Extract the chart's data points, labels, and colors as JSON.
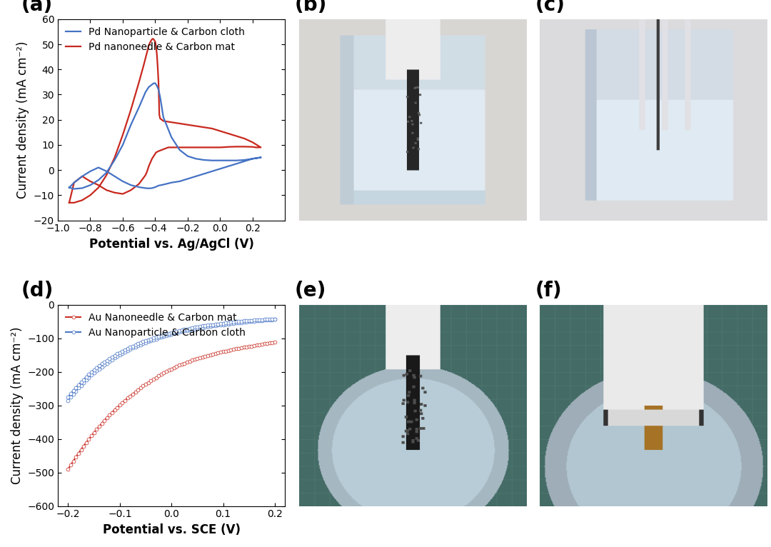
{
  "panel_a": {
    "label": "(a)",
    "xlabel": "Potential vs. Ag/AgCl (V)",
    "ylabel": "Current density (mA cm⁻²)",
    "xlim": [
      -1.0,
      0.4
    ],
    "ylim": [
      -20,
      60
    ],
    "xticks": [
      -1.0,
      -0.8,
      -0.6,
      -0.4,
      -0.2,
      0.0,
      0.2
    ],
    "yticks": [
      -20,
      -10,
      0,
      10,
      20,
      30,
      40,
      50,
      60
    ],
    "legend1": "Pd Nanoparticle & Carbon cloth",
    "legend2": "Pd nanoneedle & Carbon mat",
    "color1": "#4472C4",
    "color2": "#C8281E",
    "blue_cv_x": [
      -0.93,
      -0.9,
      -0.85,
      -0.8,
      -0.75,
      -0.7,
      -0.65,
      -0.6,
      -0.55,
      -0.5,
      -0.48,
      -0.46,
      -0.44,
      -0.42,
      -0.41,
      -0.4,
      -0.39,
      -0.38,
      -0.37,
      -0.36,
      -0.35,
      -0.3,
      -0.25,
      -0.2,
      -0.15,
      -0.1,
      -0.05,
      0.0,
      0.05,
      0.1,
      0.15,
      0.2,
      0.25,
      0.25,
      0.2,
      0.15,
      0.1,
      0.05,
      0.0,
      -0.05,
      -0.1,
      -0.15,
      -0.2,
      -0.25,
      -0.3,
      -0.35,
      -0.38,
      -0.4,
      -0.42,
      -0.44,
      -0.46,
      -0.5,
      -0.55,
      -0.6,
      -0.65,
      -0.7,
      -0.75,
      -0.8,
      -0.85,
      -0.9,
      -0.93
    ],
    "blue_cv_y": [
      -7.0,
      -7.5,
      -7.2,
      -6.0,
      -4.0,
      -1.0,
      4.0,
      10.0,
      18.0,
      25.0,
      28.0,
      31.0,
      33.0,
      34.0,
      34.5,
      34.5,
      33.5,
      32.0,
      29.0,
      25.0,
      21.0,
      13.0,
      8.0,
      5.5,
      4.5,
      4.0,
      3.8,
      3.8,
      3.8,
      3.8,
      4.0,
      4.5,
      5.0,
      5.0,
      4.5,
      3.5,
      2.5,
      1.5,
      0.5,
      -0.5,
      -1.5,
      -2.5,
      -3.5,
      -4.5,
      -5.0,
      -5.8,
      -6.2,
      -6.8,
      -7.2,
      -7.3,
      -7.2,
      -6.8,
      -6.0,
      -4.5,
      -2.5,
      -0.5,
      1.0,
      -0.5,
      -2.5,
      -5.0,
      -7.0
    ],
    "red_cv_x": [
      -0.93,
      -0.9,
      -0.85,
      -0.8,
      -0.75,
      -0.7,
      -0.65,
      -0.6,
      -0.55,
      -0.5,
      -0.47,
      -0.45,
      -0.44,
      -0.43,
      -0.42,
      -0.415,
      -0.41,
      -0.405,
      -0.4,
      -0.395,
      -0.39,
      -0.385,
      -0.38,
      -0.375,
      -0.37,
      -0.36,
      -0.35,
      -0.3,
      -0.25,
      -0.2,
      -0.15,
      -0.1,
      -0.05,
      0.0,
      0.05,
      0.1,
      0.15,
      0.2,
      0.25,
      0.25,
      0.22,
      0.2,
      0.15,
      0.1,
      0.05,
      0.0,
      -0.05,
      -0.1,
      -0.15,
      -0.2,
      -0.25,
      -0.28,
      -0.3,
      -0.32,
      -0.34,
      -0.36,
      -0.38,
      -0.395,
      -0.4,
      -0.41,
      -0.42,
      -0.43,
      -0.44,
      -0.45,
      -0.46,
      -0.5,
      -0.55,
      -0.6,
      -0.65,
      -0.7,
      -0.75,
      -0.8,
      -0.85,
      -0.9,
      -0.93
    ],
    "red_cv_y": [
      -13.0,
      -13.0,
      -12.0,
      -10.0,
      -7.0,
      -2.0,
      5.0,
      14.0,
      24.0,
      35.0,
      42.0,
      47.0,
      49.5,
      51.0,
      52.0,
      52.2,
      52.0,
      51.5,
      51.0,
      49.0,
      46.0,
      41.0,
      35.0,
      22.0,
      20.5,
      20.0,
      19.5,
      19.0,
      18.5,
      18.0,
      17.5,
      17.0,
      16.5,
      15.5,
      14.5,
      13.5,
      12.5,
      11.0,
      9.0,
      9.0,
      9.0,
      9.2,
      9.3,
      9.3,
      9.2,
      9.0,
      9.0,
      9.0,
      9.0,
      9.0,
      9.0,
      9.0,
      9.0,
      9.0,
      8.5,
      8.0,
      7.5,
      7.0,
      6.5,
      5.5,
      4.5,
      3.0,
      1.5,
      -0.5,
      -2.0,
      -5.5,
      -8.0,
      -9.5,
      -9.0,
      -8.0,
      -6.0,
      -4.5,
      -2.5,
      -5.0,
      -13.0
    ]
  },
  "panel_d": {
    "label": "(d)",
    "xlabel": "Potential vs. SCE (V)",
    "ylabel": "Current density (mA cm⁻²)",
    "xlim": [
      -0.22,
      0.22
    ],
    "ylim": [
      -600,
      0
    ],
    "xticks": [
      -0.2,
      -0.1,
      0.0,
      0.1,
      0.2
    ],
    "yticks": [
      0,
      -100,
      -200,
      -300,
      -400,
      -500,
      -600
    ],
    "legend1": "Au Nanoneedle & Carbon mat",
    "legend2": "Au Nanoparticle & Carbon cloth",
    "color1": "#C8281E",
    "color2": "#4472C4",
    "red_x": [
      -0.2,
      -0.195,
      -0.19,
      -0.185,
      -0.18,
      -0.175,
      -0.17,
      -0.165,
      -0.16,
      -0.155,
      -0.15,
      -0.145,
      -0.14,
      -0.135,
      -0.13,
      -0.125,
      -0.12,
      -0.115,
      -0.11,
      -0.105,
      -0.1,
      -0.095,
      -0.09,
      -0.085,
      -0.08,
      -0.075,
      -0.07,
      -0.065,
      -0.06,
      -0.055,
      -0.05,
      -0.045,
      -0.04,
      -0.035,
      -0.03,
      -0.025,
      -0.02,
      -0.015,
      -0.01,
      -0.005,
      0.0,
      0.005,
      0.01,
      0.015,
      0.02,
      0.025,
      0.03,
      0.035,
      0.04,
      0.045,
      0.05,
      0.055,
      0.06,
      0.065,
      0.07,
      0.075,
      0.08,
      0.085,
      0.09,
      0.095,
      0.1,
      0.105,
      0.11,
      0.115,
      0.12,
      0.125,
      0.13,
      0.135,
      0.14,
      0.145,
      0.15,
      0.155,
      0.16,
      0.165,
      0.17,
      0.175,
      0.18,
      0.185,
      0.19,
      0.195,
      0.2
    ],
    "red_y": [
      -490,
      -478,
      -466,
      -454,
      -443,
      -432,
      -421,
      -411,
      -401,
      -391,
      -381,
      -372,
      -363,
      -354,
      -345,
      -337,
      -329,
      -321,
      -313,
      -306,
      -299,
      -292,
      -285,
      -278,
      -272,
      -266,
      -260,
      -254,
      -248,
      -242,
      -237,
      -232,
      -227,
      -222,
      -217,
      -212,
      -207,
      -203,
      -199,
      -195,
      -191,
      -187,
      -184,
      -180,
      -177,
      -174,
      -171,
      -168,
      -165,
      -163,
      -160,
      -158,
      -155,
      -153,
      -151,
      -149,
      -147,
      -145,
      -143,
      -141,
      -139,
      -138,
      -136,
      -134,
      -133,
      -131,
      -130,
      -128,
      -127,
      -125,
      -124,
      -123,
      -121,
      -120,
      -119,
      -118,
      -116,
      -115,
      -114,
      -113,
      -112
    ],
    "blue1_x": [
      -0.2,
      -0.195,
      -0.19,
      -0.185,
      -0.18,
      -0.175,
      -0.17,
      -0.165,
      -0.16,
      -0.155,
      -0.15,
      -0.145,
      -0.14,
      -0.135,
      -0.13,
      -0.125,
      -0.12,
      -0.115,
      -0.11,
      -0.105,
      -0.1,
      -0.095,
      -0.09,
      -0.085,
      -0.08,
      -0.075,
      -0.07,
      -0.065,
      -0.06,
      -0.055,
      -0.05,
      -0.045,
      -0.04,
      -0.035,
      -0.03,
      -0.025,
      -0.02,
      -0.015,
      -0.01,
      -0.005,
      0.0,
      0.005,
      0.01,
      0.015,
      0.02,
      0.025,
      0.03,
      0.035,
      0.04,
      0.045,
      0.05,
      0.055,
      0.06,
      0.065,
      0.07,
      0.075,
      0.08,
      0.085,
      0.09,
      0.095,
      0.1,
      0.105,
      0.11,
      0.115,
      0.12,
      0.125,
      0.13,
      0.135,
      0.14,
      0.145,
      0.15,
      0.155,
      0.16,
      0.165,
      0.17,
      0.175,
      0.18,
      0.185,
      0.19,
      0.195,
      0.2
    ],
    "blue1_y": [
      -285,
      -275,
      -266,
      -257,
      -248,
      -240,
      -232,
      -224,
      -217,
      -210,
      -203,
      -197,
      -191,
      -185,
      -179,
      -174,
      -169,
      -164,
      -159,
      -154,
      -149,
      -145,
      -141,
      -137,
      -133,
      -129,
      -126,
      -122,
      -119,
      -116,
      -113,
      -110,
      -107,
      -104,
      -102,
      -99,
      -97,
      -94,
      -92,
      -90,
      -88,
      -86,
      -84,
      -82,
      -80,
      -78,
      -77,
      -75,
      -74,
      -72,
      -71,
      -69,
      -68,
      -67,
      -65,
      -64,
      -63,
      -62,
      -61,
      -60,
      -59,
      -58,
      -57,
      -56,
      -55,
      -54,
      -53,
      -53,
      -52,
      -51,
      -50,
      -50,
      -49,
      -48,
      -48,
      -47,
      -46,
      -46,
      -45,
      -45,
      -44
    ],
    "blue2_x": [
      -0.2,
      -0.195,
      -0.19,
      -0.185,
      -0.18,
      -0.175,
      -0.17,
      -0.165,
      -0.16,
      -0.155,
      -0.15,
      -0.145,
      -0.14,
      -0.135,
      -0.13,
      -0.125,
      -0.12,
      -0.115,
      -0.11,
      -0.105,
      -0.1,
      -0.095,
      -0.09,
      -0.085,
      -0.08,
      -0.075,
      -0.07,
      -0.065,
      -0.06,
      -0.055,
      -0.05,
      -0.045,
      -0.04,
      -0.035,
      -0.03,
      -0.025,
      -0.02,
      -0.015,
      -0.01,
      -0.005,
      0.0,
      0.005,
      0.01,
      0.015,
      0.02,
      0.025,
      0.03,
      0.035,
      0.04,
      0.045,
      0.05,
      0.055,
      0.06,
      0.065,
      0.07,
      0.075,
      0.08,
      0.085,
      0.09,
      0.095,
      0.1,
      0.105,
      0.11,
      0.115,
      0.12,
      0.125,
      0.13,
      0.135,
      0.14,
      0.145,
      0.15,
      0.155,
      0.16,
      0.165,
      0.17,
      0.175,
      0.18,
      0.185,
      0.19,
      0.195,
      0.2
    ],
    "blue2_y": [
      -275,
      -265,
      -256,
      -247,
      -239,
      -231,
      -223,
      -215,
      -208,
      -201,
      -194,
      -188,
      -182,
      -176,
      -171,
      -166,
      -161,
      -156,
      -151,
      -146,
      -142,
      -138,
      -134,
      -130,
      -127,
      -123,
      -120,
      -116,
      -113,
      -110,
      -107,
      -104,
      -102,
      -99,
      -97,
      -94,
      -92,
      -89,
      -87,
      -85,
      -83,
      -81,
      -79,
      -77,
      -75,
      -73,
      -72,
      -70,
      -69,
      -67,
      -66,
      -64,
      -63,
      -62,
      -61,
      -60,
      -59,
      -58,
      -57,
      -56,
      -55,
      -54,
      -53,
      -52,
      -51,
      -50,
      -49,
      -49,
      -48,
      -48,
      -47,
      -47,
      -46,
      -46,
      -45,
      -45,
      -44,
      -44,
      -43,
      -43,
      -42
    ]
  },
  "panel_labels": [
    "(a)",
    "(b)",
    "(c)",
    "(d)",
    "(e)",
    "(f)"
  ],
  "label_fontsize": 20,
  "axis_label_fontsize": 12,
  "tick_fontsize": 10,
  "legend_fontsize": 10,
  "background_color": "#ffffff"
}
